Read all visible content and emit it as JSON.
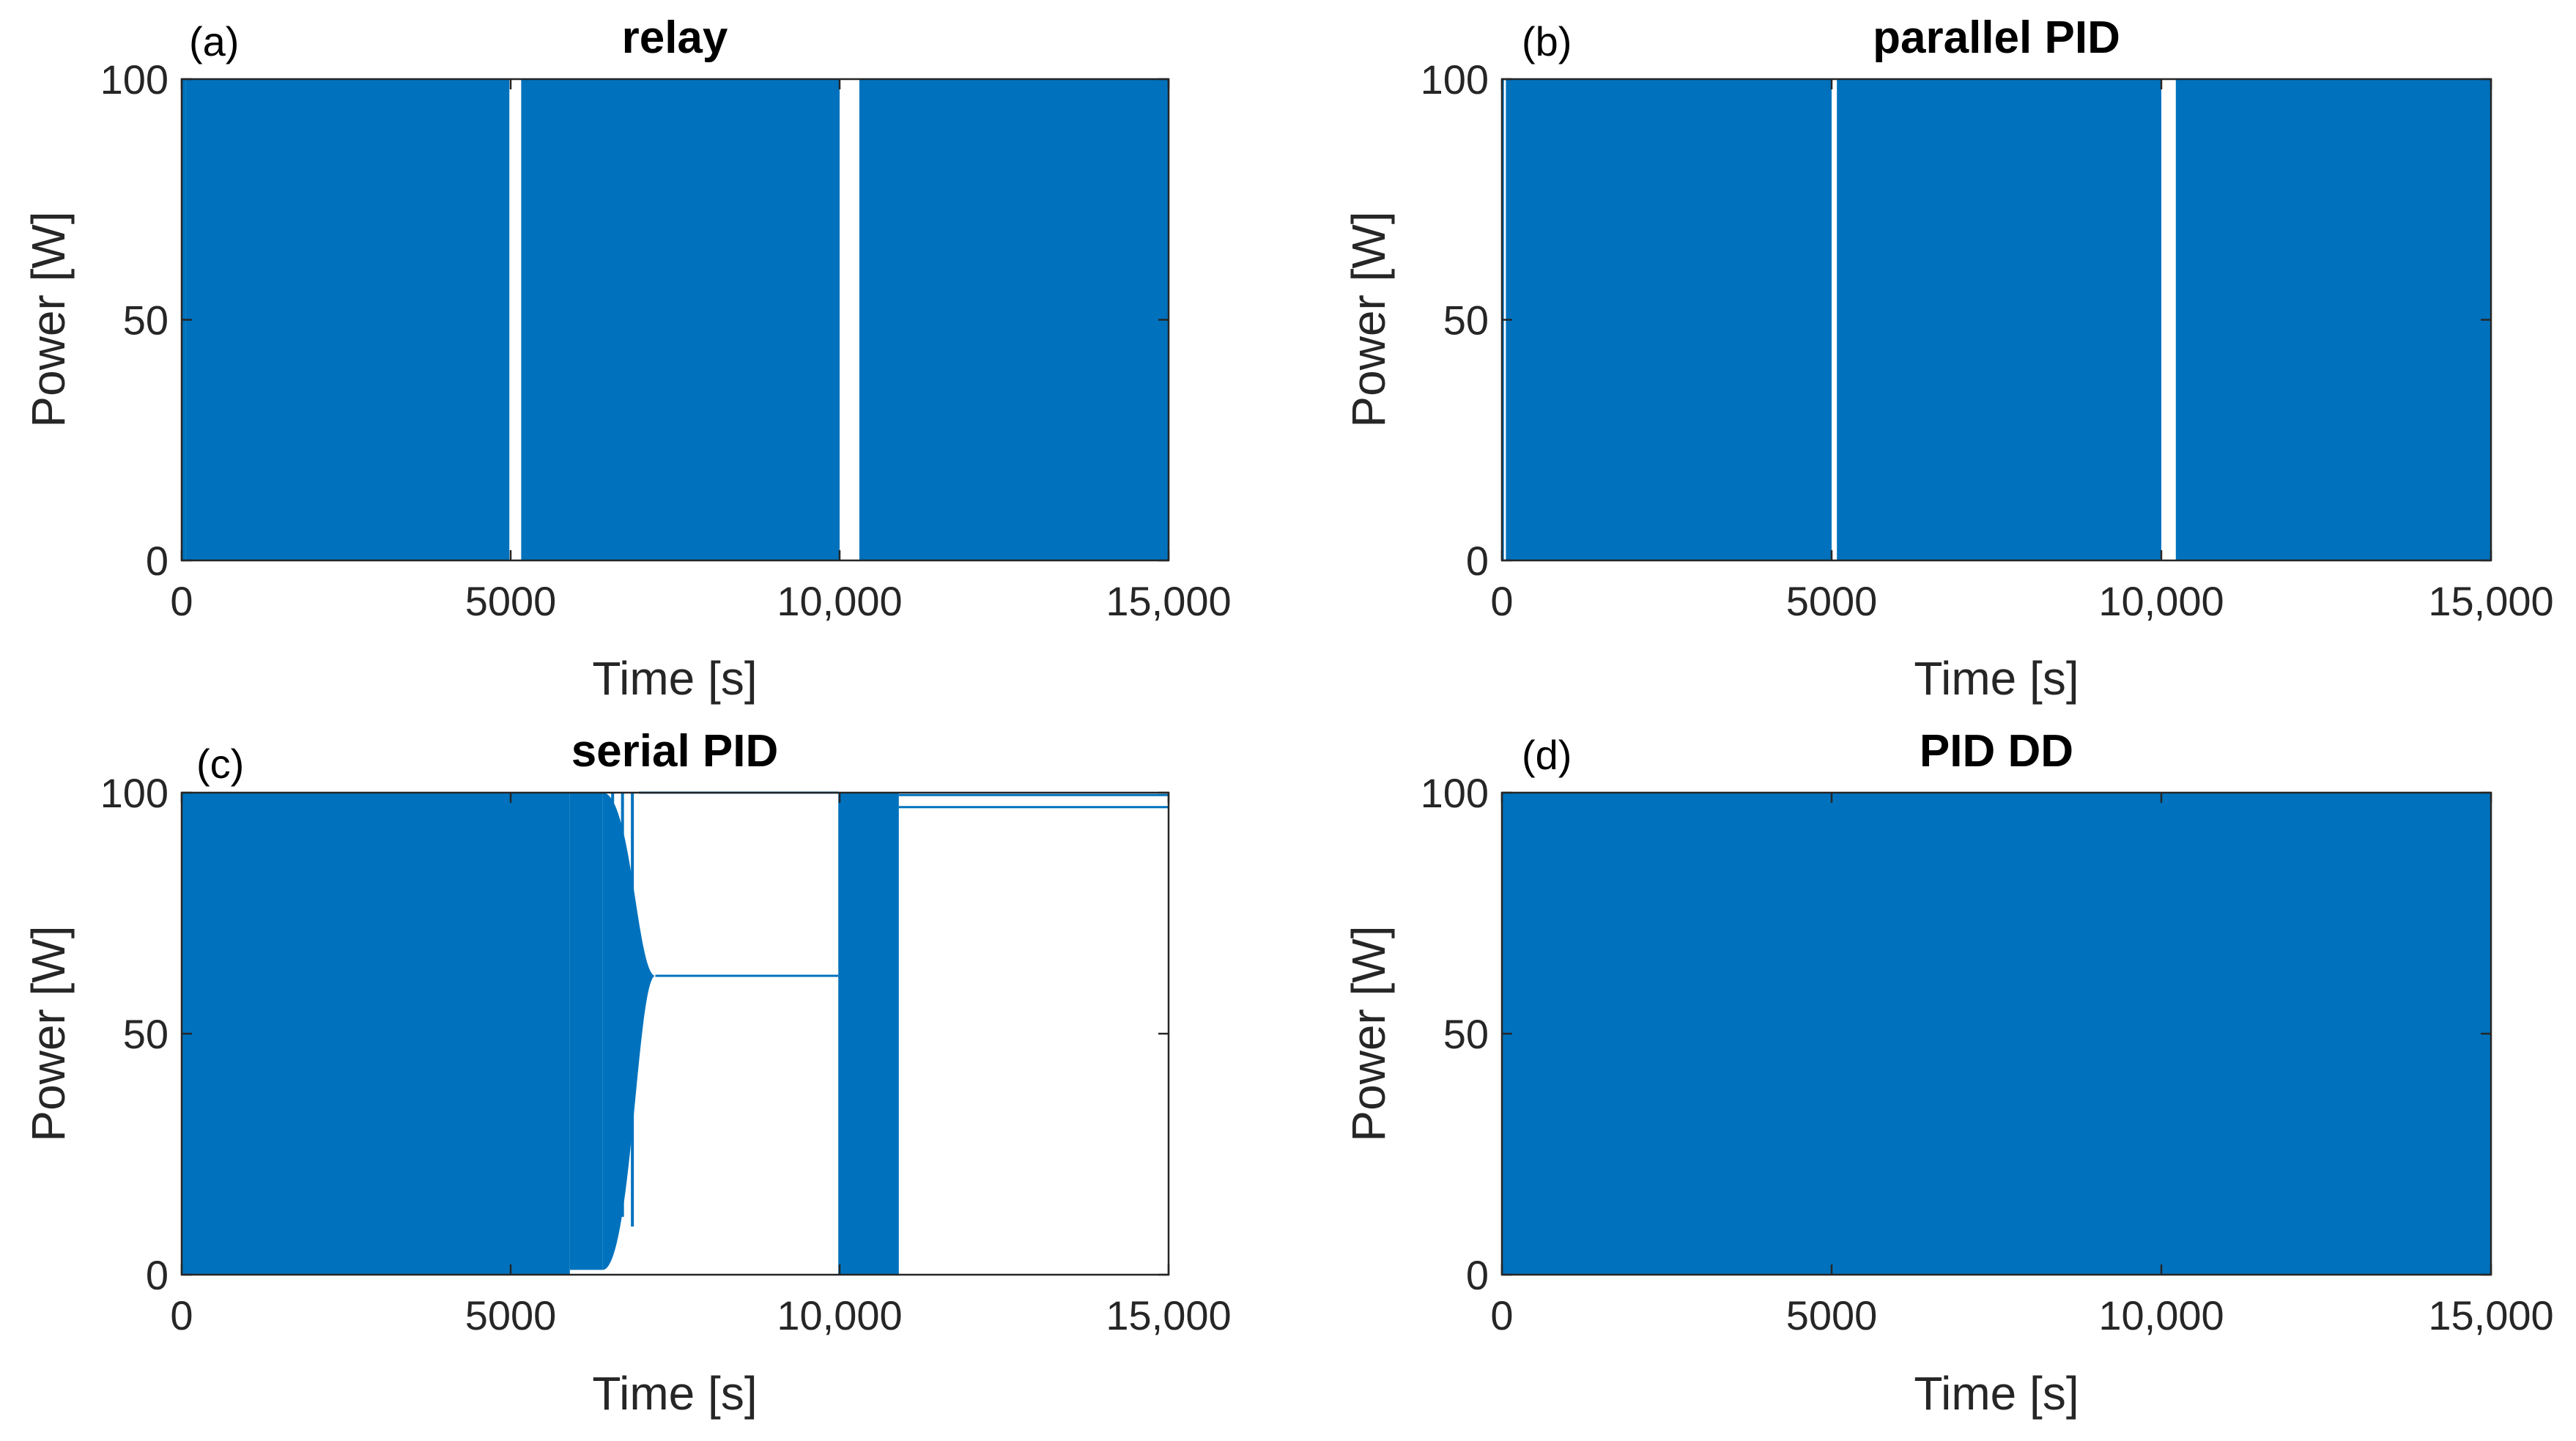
{
  "figure": {
    "colors": {
      "series": "#0072bd",
      "axis": "#262626",
      "background": "#ffffff"
    }
  },
  "chart_data": [
    {
      "panel_label": "(a)",
      "type": "line",
      "title": "relay",
      "xlabel": "Time [s]",
      "ylabel": "Power [W]",
      "xlim": [
        0,
        15000
      ],
      "ylim": [
        0,
        100
      ],
      "xticks": [
        0,
        5000,
        10000,
        15000
      ],
      "xtick_labels": [
        "0",
        "5000",
        "10,000",
        "15,000"
      ],
      "yticks": [
        0,
        50,
        100
      ],
      "ytick_labels": [
        "0",
        "50",
        "100"
      ],
      "series": [
        {
          "name": "power",
          "color": "#0072bd",
          "behavior": "on-off switching between 0 and 100 W",
          "switching_bands": [
            {
              "start": 0,
              "end": 60,
              "low": 0,
              "high": 100
            },
            {
              "start": 60,
              "end": 4980,
              "low": 0,
              "high": 100
            },
            {
              "start": 5160,
              "end": 10000,
              "low": 0,
              "high": 100
            },
            {
              "start": 10300,
              "end": 15000,
              "low": 0,
              "high": 100
            }
          ]
        }
      ]
    },
    {
      "panel_label": "(b)",
      "type": "line",
      "title": "parallel PID",
      "xlabel": "Time [s]",
      "ylabel": "Power [W]",
      "xlim": [
        0,
        15000
      ],
      "ylim": [
        0,
        100
      ],
      "xticks": [
        0,
        5000,
        10000,
        15000
      ],
      "xtick_labels": [
        "0",
        "5000",
        "10,000",
        "15,000"
      ],
      "yticks": [
        0,
        50,
        100
      ],
      "ytick_labels": [
        "0",
        "50",
        "100"
      ],
      "series": [
        {
          "name": "power",
          "color": "#0072bd",
          "behavior": "on-off switching between 0 and 100 W",
          "switching_bands": [
            {
              "start": 0,
              "end": 30,
              "low": 0,
              "high": 100
            },
            {
              "start": 60,
              "end": 5000,
              "low": 0,
              "high": 100
            },
            {
              "start": 5080,
              "end": 10000,
              "low": 0,
              "high": 100
            },
            {
              "start": 10220,
              "end": 15000,
              "low": 0,
              "high": 100
            }
          ]
        }
      ]
    },
    {
      "panel_label": "(c)",
      "type": "line",
      "title": "serial PID",
      "xlabel": "Time [s]",
      "ylabel": "Power [W]",
      "xlim": [
        0,
        15000
      ],
      "ylim": [
        0,
        100
      ],
      "xticks": [
        0,
        5000,
        10000,
        15000
      ],
      "xtick_labels": [
        "0",
        "5000",
        "10,000",
        "15,000"
      ],
      "yticks": [
        0,
        50,
        100
      ],
      "ytick_labels": [
        "0",
        "50",
        "100"
      ],
      "series": [
        {
          "name": "power",
          "color": "#0072bd",
          "behavior": "switching that converges to a steady value, then saturates",
          "switching_bands": [
            {
              "start": 0,
              "end": 5900,
              "low": 0,
              "high": 100
            },
            {
              "start": 5900,
              "end": 6400,
              "low": 1,
              "high": 100
            },
            {
              "start": 9980,
              "end": 10900,
              "low": 0,
              "high": 100
            }
          ],
          "convergence": {
            "start": 6400,
            "end": 7200,
            "low_from": 1,
            "high_from": 100,
            "to": 62
          },
          "steady_segments": [
            {
              "start": 7200,
              "end": 9980,
              "value": 62
            },
            {
              "start": 10900,
              "end": 15000,
              "value": 97
            },
            {
              "start": 10900,
              "end": 15000,
              "value": 99.5
            },
            {
              "start": 6950,
              "end": 9980,
              "value": 100
            }
          ],
          "spikes": [
            {
              "x": 6100,
              "low": 28,
              "high": 100
            },
            {
              "x": 6300,
              "low": 28,
              "high": 100
            },
            {
              "x": 6550,
              "low": 18,
              "high": 100
            },
            {
              "x": 6700,
              "low": 12,
              "high": 100
            },
            {
              "x": 6850,
              "low": 10,
              "high": 100
            },
            {
              "x": 10450,
              "low": 70,
              "high": 100
            },
            {
              "x": 10600,
              "low": 30,
              "high": 100
            },
            {
              "x": 10800,
              "low": 0,
              "high": 100
            }
          ]
        }
      ]
    },
    {
      "panel_label": "(d)",
      "type": "line",
      "title": "PID DD",
      "xlabel": "Time [s]",
      "ylabel": "Power [W]",
      "xlim": [
        0,
        15000
      ],
      "ylim": [
        0,
        100
      ],
      "xticks": [
        0,
        5000,
        10000,
        15000
      ],
      "xtick_labels": [
        "0",
        "5000",
        "10,000",
        "15,000"
      ],
      "yticks": [
        0,
        50,
        100
      ],
      "ytick_labels": [
        "0",
        "50",
        "100"
      ],
      "series": [
        {
          "name": "power",
          "color": "#0072bd",
          "behavior": "on-off switching between 0 and 100 W",
          "switching_bands": [
            {
              "start": 0,
              "end": 15000,
              "low": 0,
              "high": 100
            }
          ]
        }
      ]
    }
  ]
}
